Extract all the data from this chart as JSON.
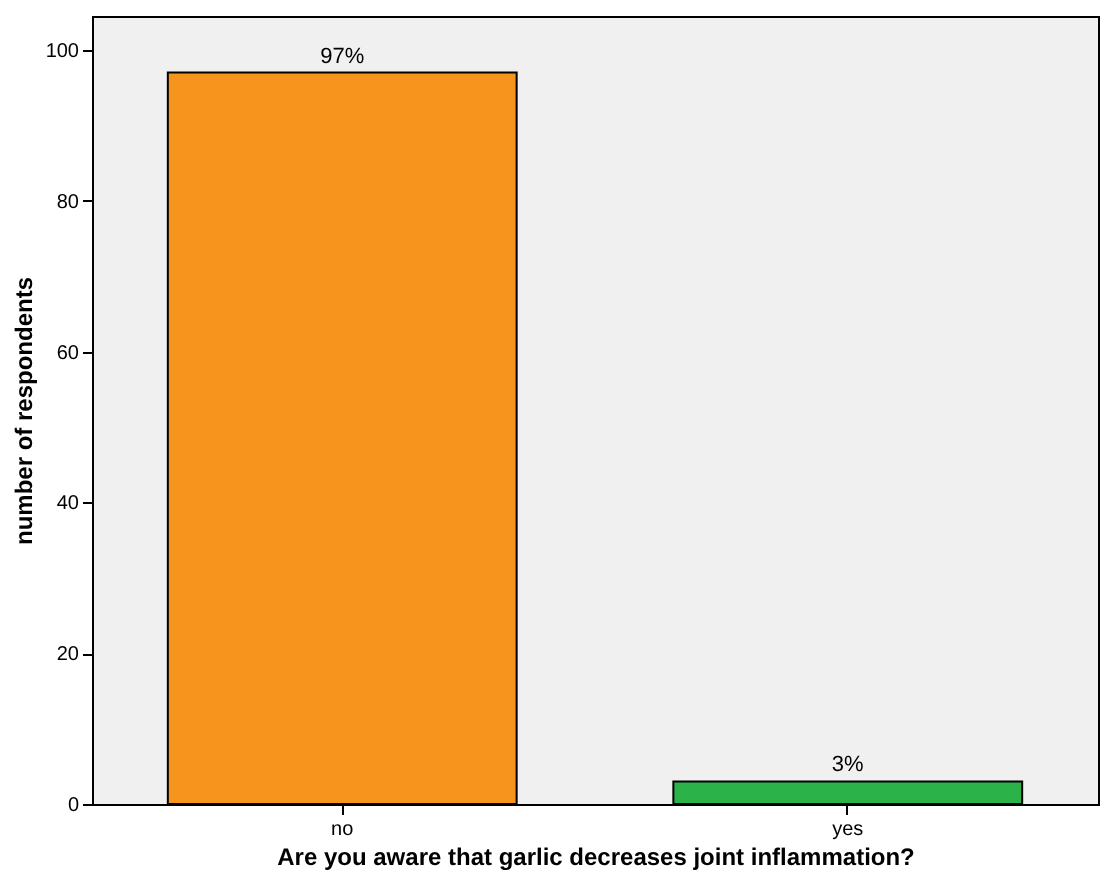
{
  "chart_data": {
    "type": "bar",
    "xlabel": "Are you aware that garlic decreases joint inflammation?",
    "ylabel": "number of respondents",
    "categories": [
      "no",
      "yes"
    ],
    "values": [
      97,
      3
    ],
    "colors": [
      "#f7941d",
      "#2bb34a"
    ],
    "value_labels": [
      "97%",
      "3%"
    ],
    "ylim": [
      0,
      104.5
    ],
    "yticks": [
      0,
      20,
      40,
      60,
      80,
      100
    ],
    "grid": false
  }
}
